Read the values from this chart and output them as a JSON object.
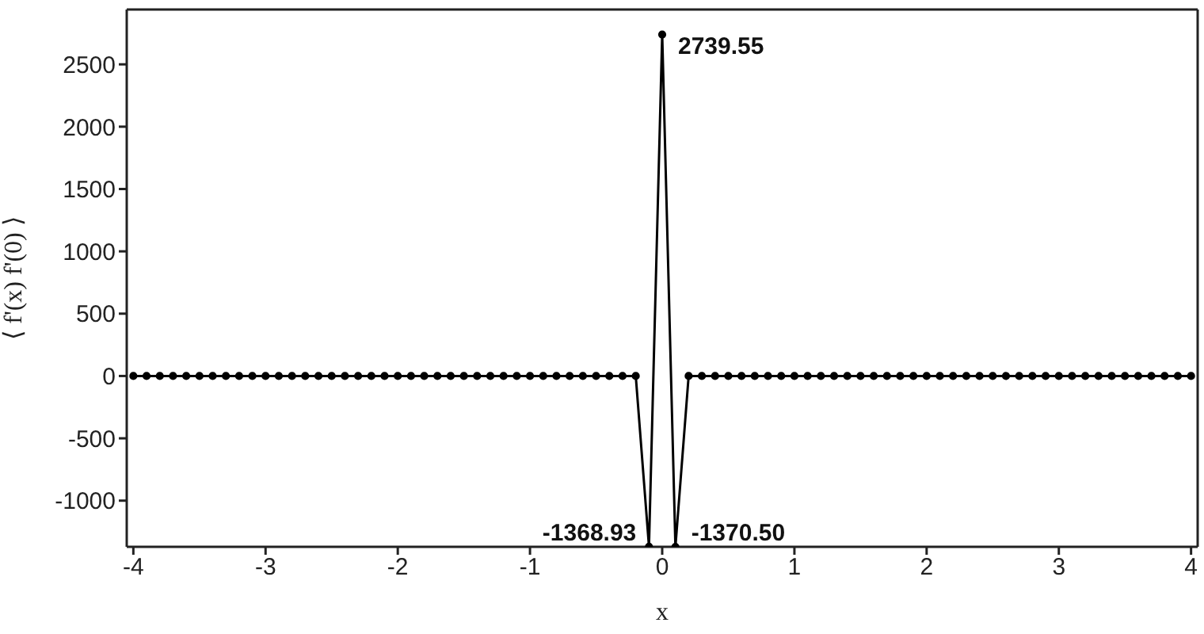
{
  "chart_data": {
    "type": "line",
    "xlabel": "x",
    "ylabel": "⟨ f'(x) f'(0) ⟩",
    "x": [
      -4,
      -3.9,
      -3.8,
      -3.7,
      -3.6,
      -3.5,
      -3.4,
      -3.3,
      -3.2,
      -3.1,
      -3,
      -2.9,
      -2.8,
      -2.7,
      -2.6,
      -2.5,
      -2.4,
      -2.3,
      -2.2,
      -2.1,
      -2,
      -1.9,
      -1.8,
      -1.7,
      -1.6,
      -1.5,
      -1.4,
      -1.3,
      -1.2,
      -1.1,
      -1,
      -0.9,
      -0.8,
      -0.7,
      -0.6,
      -0.5,
      -0.4,
      -0.3,
      -0.2,
      -0.1,
      0,
      0.1,
      0.2,
      0.3,
      0.4,
      0.5,
      0.6,
      0.7,
      0.8,
      0.9,
      1,
      1.1,
      1.2,
      1.3,
      1.4,
      1.5,
      1.6,
      1.7,
      1.8,
      1.9,
      2,
      2.1,
      2.2,
      2.3,
      2.4,
      2.5,
      2.6,
      2.7,
      2.8,
      2.9,
      3,
      3.1,
      3.2,
      3.3,
      3.4,
      3.5,
      3.6,
      3.7,
      3.8,
      3.9,
      4
    ],
    "series": [
      {
        "color": "#000000",
        "values": [
          0,
          0,
          0,
          0,
          0,
          0,
          0,
          0,
          0,
          0,
          0,
          0,
          0,
          0,
          0,
          0,
          0,
          0,
          0,
          0,
          0,
          0,
          0,
          0,
          0,
          0,
          0,
          0,
          0,
          0,
          0,
          0,
          0,
          0,
          0,
          0,
          0,
          0,
          0,
          -1368.93,
          2739.55,
          -1370.5,
          0,
          0,
          0,
          0,
          0,
          0,
          0,
          0,
          0,
          0,
          0,
          0,
          0,
          0,
          0,
          0,
          0,
          0,
          0,
          0,
          0,
          0,
          0,
          0,
          0,
          0,
          0,
          0,
          0,
          0,
          0,
          0,
          0,
          0,
          0,
          0,
          0,
          0,
          0
        ],
        "value_labels": [
          null,
          null,
          null,
          null,
          null,
          null,
          null,
          null,
          null,
          null,
          null,
          null,
          null,
          null,
          null,
          null,
          null,
          null,
          null,
          null,
          null,
          null,
          null,
          null,
          null,
          null,
          null,
          null,
          null,
          null,
          null,
          null,
          null,
          null,
          null,
          null,
          null,
          null,
          null,
          "-1368.93",
          "2739.55",
          "-1370.50",
          null,
          null,
          null,
          null,
          null,
          null,
          null,
          null,
          null,
          null,
          null,
          null,
          null,
          null,
          null,
          null,
          null,
          null,
          null,
          null,
          null,
          null,
          null,
          null,
          null,
          null,
          null,
          null,
          null,
          null,
          null,
          null,
          null,
          null,
          null,
          null,
          null,
          null,
          null
        ]
      }
    ],
    "xlim": [
      -4.05,
      4.05
    ],
    "xticks": [
      -4,
      -3,
      -2,
      -1,
      0,
      1,
      2,
      3,
      4
    ],
    "ylim": [
      -1370.5,
      2940
    ],
    "yticks": [
      -1000,
      -500,
      0,
      500,
      1000,
      1500,
      2000,
      2500
    ],
    "grid": false,
    "legend": false,
    "marker": "circle",
    "line_style": "solid"
  }
}
